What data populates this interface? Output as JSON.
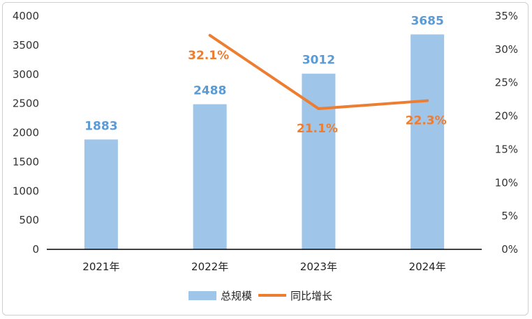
{
  "chart_data": {
    "type": "bar",
    "categories": [
      "2021年",
      "2022年",
      "2023年",
      "2024年"
    ],
    "series": [
      {
        "name": "总规模",
        "type": "bar",
        "axis": "left",
        "values": [
          1883,
          2488,
          3012,
          3685
        ],
        "labels": [
          "1883",
          "2488",
          "3012",
          "3685"
        ]
      },
      {
        "name": "同比增长",
        "type": "line",
        "axis": "right",
        "values": [
          null,
          32.1,
          21.1,
          22.3
        ],
        "labels": [
          "",
          "32.1%",
          "21.1%",
          "22.3%"
        ]
      }
    ],
    "ylim_left": [
      0,
      4000
    ],
    "yticks_left": [
      "0",
      "500",
      "1000",
      "1500",
      "2000",
      "2500",
      "3000",
      "3500",
      "4000"
    ],
    "ylim_right": [
      0,
      35
    ],
    "yticks_right": [
      "0%",
      "5%",
      "10%",
      "15%",
      "20%",
      "25%",
      "30%",
      "35%"
    ],
    "legend_position": "bottom",
    "grid": false,
    "colors": {
      "bar": "#9fc5e8",
      "bar_label": "#5b9bd5",
      "line": "#ed7d31"
    }
  }
}
